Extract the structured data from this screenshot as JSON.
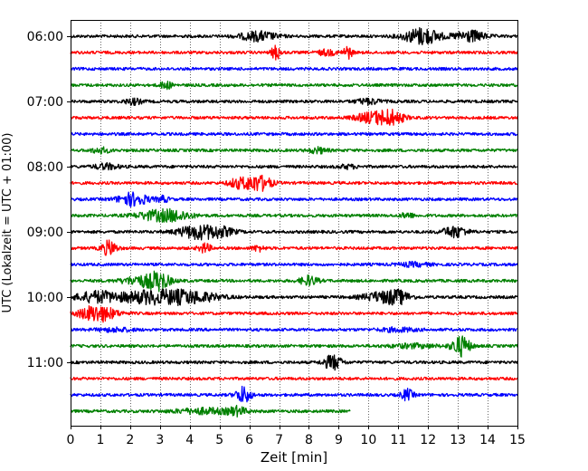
{
  "chart_data": {
    "type": "line",
    "title": "",
    "xlabel": "Zeit  [min]",
    "ylabel": "UTC (Lokalzeit = UTC + 01:00)",
    "xlim": [
      0,
      15
    ],
    "x_ticks": [
      "0",
      "1",
      "2",
      "3",
      "4",
      "5",
      "6",
      "7",
      "8",
      "9",
      "10",
      "11",
      "12",
      "13",
      "14",
      "15"
    ],
    "y_ticks": [
      "06:00",
      "07:00",
      "08:00",
      "09:00",
      "10:00",
      "11:00"
    ],
    "grid": "vertical dotted",
    "row_colors": [
      "#000000",
      "#ff0000",
      "#0000ff",
      "#008000"
    ],
    "rows": [
      {
        "time": "06:00",
        "color": "#000000",
        "end_min": 15,
        "events": [
          {
            "t": 6.3,
            "a": 5,
            "w": 0.6
          },
          {
            "t": 11.8,
            "a": 9,
            "w": 0.6
          },
          {
            "t": 13.4,
            "a": 6,
            "w": 0.5
          }
        ]
      },
      {
        "time": "06:15",
        "color": "#ff0000",
        "end_min": 15,
        "events": [
          {
            "t": 6.9,
            "a": 8,
            "w": 0.15
          },
          {
            "t": 9.3,
            "a": 7,
            "w": 0.15
          },
          {
            "t": 8.6,
            "a": 3,
            "w": 0.3
          }
        ]
      },
      {
        "time": "06:30",
        "color": "#0000ff",
        "end_min": 15,
        "events": []
      },
      {
        "time": "06:45",
        "color": "#008000",
        "end_min": 15,
        "events": [
          {
            "t": 3.2,
            "a": 4,
            "w": 0.2
          }
        ]
      },
      {
        "time": "07:00",
        "color": "#000000",
        "end_min": 15,
        "events": [
          {
            "t": 2.1,
            "a": 3,
            "w": 0.3
          },
          {
            "t": 10.0,
            "a": 3,
            "w": 0.4
          }
        ]
      },
      {
        "time": "07:15",
        "color": "#ff0000",
        "end_min": 15,
        "events": [
          {
            "t": 10.2,
            "a": 6,
            "w": 0.6
          },
          {
            "t": 10.8,
            "a": 6,
            "w": 0.4
          }
        ]
      },
      {
        "time": "07:30",
        "color": "#0000ff",
        "end_min": 15,
        "events": []
      },
      {
        "time": "07:45",
        "color": "#008000",
        "end_min": 15,
        "events": [
          {
            "t": 1.0,
            "a": 3,
            "w": 0.3
          },
          {
            "t": 8.3,
            "a": 3,
            "w": 0.3
          }
        ]
      },
      {
        "time": "08:00",
        "color": "#000000",
        "end_min": 15,
        "events": [
          {
            "t": 1.2,
            "a": 3,
            "w": 0.4
          },
          {
            "t": 9.3,
            "a": 2,
            "w": 0.3
          }
        ]
      },
      {
        "time": "08:15",
        "color": "#ff0000",
        "end_min": 15,
        "events": [
          {
            "t": 5.6,
            "a": 5,
            "w": 0.3
          },
          {
            "t": 6.1,
            "a": 7,
            "w": 0.3
          },
          {
            "t": 6.5,
            "a": 6,
            "w": 0.3
          }
        ]
      },
      {
        "time": "08:30",
        "color": "#0000ff",
        "end_min": 15,
        "events": [
          {
            "t": 2.1,
            "a": 7,
            "w": 0.5
          },
          {
            "t": 3.1,
            "a": 3,
            "w": 0.2
          }
        ]
      },
      {
        "time": "08:45",
        "color": "#008000",
        "end_min": 15,
        "events": [
          {
            "t": 2.9,
            "a": 5,
            "w": 0.7
          },
          {
            "t": 3.6,
            "a": 4,
            "w": 0.5
          },
          {
            "t": 11.3,
            "a": 3,
            "w": 0.2
          }
        ]
      },
      {
        "time": "09:00",
        "color": "#000000",
        "end_min": 15,
        "events": [
          {
            "t": 4.2,
            "a": 7,
            "w": 0.6
          },
          {
            "t": 5.0,
            "a": 5,
            "w": 0.5
          },
          {
            "t": 12.9,
            "a": 6,
            "w": 0.4
          }
        ]
      },
      {
        "time": "09:15",
        "color": "#ff0000",
        "end_min": 15,
        "events": [
          {
            "t": 1.3,
            "a": 8,
            "w": 0.25
          },
          {
            "t": 4.5,
            "a": 5,
            "w": 0.2
          },
          {
            "t": 6.3,
            "a": 3,
            "w": 0.2
          }
        ]
      },
      {
        "time": "09:30",
        "color": "#0000ff",
        "end_min": 15,
        "events": [
          {
            "t": 11.5,
            "a": 2,
            "w": 0.5
          }
        ]
      },
      {
        "time": "09:45",
        "color": "#008000",
        "end_min": 15,
        "events": [
          {
            "t": 2.5,
            "a": 6,
            "w": 0.7
          },
          {
            "t": 3.0,
            "a": 7,
            "w": 0.3
          },
          {
            "t": 8.0,
            "a": 5,
            "w": 0.3
          }
        ]
      },
      {
        "time": "10:00",
        "color": "#000000",
        "end_min": 15,
        "events": [
          {
            "t": 0.9,
            "a": 6,
            "w": 0.7
          },
          {
            "t": 2.5,
            "a": 6,
            "w": 0.9
          },
          {
            "t": 3.9,
            "a": 7,
            "w": 1.0
          },
          {
            "t": 10.4,
            "a": 5,
            "w": 0.6
          },
          {
            "t": 11.0,
            "a": 6,
            "w": 0.4
          }
        ]
      },
      {
        "time": "10:15",
        "color": "#ff0000",
        "end_min": 15,
        "events": [
          {
            "t": 0.9,
            "a": 9,
            "w": 0.6
          }
        ]
      },
      {
        "time": "10:30",
        "color": "#0000ff",
        "end_min": 15,
        "events": [
          {
            "t": 1.5,
            "a": 2,
            "w": 0.6
          },
          {
            "t": 11.0,
            "a": 2,
            "w": 0.6
          }
        ]
      },
      {
        "time": "10:45",
        "color": "#008000",
        "end_min": 15,
        "events": [
          {
            "t": 13.1,
            "a": 11,
            "w": 0.3
          },
          {
            "t": 11.5,
            "a": 2,
            "w": 0.8
          }
        ]
      },
      {
        "time": "11:00",
        "color": "#000000",
        "end_min": 15,
        "events": [
          {
            "t": 8.8,
            "a": 8,
            "w": 0.3
          }
        ]
      },
      {
        "time": "11:15",
        "color": "#ff0000",
        "end_min": 15,
        "events": []
      },
      {
        "time": "11:30",
        "color": "#0000ff",
        "end_min": 15,
        "events": [
          {
            "t": 5.8,
            "a": 9,
            "w": 0.25
          },
          {
            "t": 11.3,
            "a": 6,
            "w": 0.2
          }
        ]
      },
      {
        "time": "11:45",
        "color": "#008000",
        "end_min": 9.4,
        "events": [
          {
            "t": 4.5,
            "a": 3,
            "w": 1.0
          },
          {
            "t": 5.6,
            "a": 4,
            "w": 0.3
          }
        ]
      }
    ]
  }
}
